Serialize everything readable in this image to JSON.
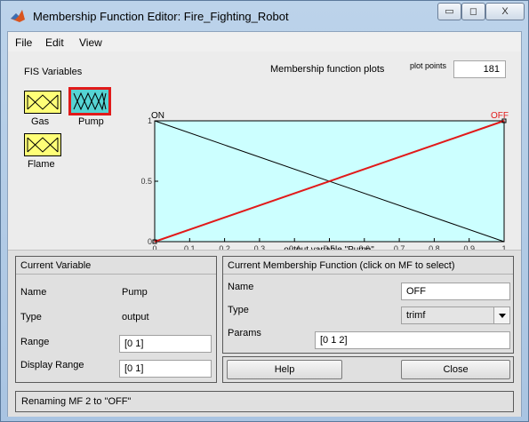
{
  "window": {
    "title": "Membership Function Editor: Fire_Fighting_Robot",
    "controls": {
      "minimize": "▭",
      "maximize": "◻",
      "close": "X"
    }
  },
  "menu": {
    "items": [
      "File",
      "Edit",
      "View"
    ]
  },
  "fis_variables": {
    "title": "FIS Variables",
    "inputs": [
      {
        "label": "Gas"
      },
      {
        "label": "Flame"
      }
    ],
    "outputs": [
      {
        "label": "Pump",
        "selected": true
      }
    ]
  },
  "plot": {
    "title": "Membership function plots",
    "points_label": "plot points",
    "points_value": "181",
    "xlabel": "output variable \"Pump\"",
    "mf_labels": [
      "ON",
      "OFF"
    ],
    "colors": {
      "background": "#ccffff",
      "mf": "#000000",
      "selected_mf": "#e11a1a"
    }
  },
  "chart_data": {
    "type": "line",
    "xlabel": "output variable \"Pump\"",
    "xlim": [
      0,
      1
    ],
    "ylim": [
      0,
      1
    ],
    "x_ticks": [
      "0",
      "0.1",
      "0.2",
      "0.3",
      "0.4",
      "0.5",
      "0.6",
      "0.7",
      "0.8",
      "0.9",
      "1"
    ],
    "y_ticks": [
      "0",
      "0.5",
      "1"
    ],
    "series": [
      {
        "name": "ON",
        "x": [
          0,
          1
        ],
        "y": [
          1,
          0
        ],
        "selected": false
      },
      {
        "name": "OFF",
        "x": [
          0,
          1
        ],
        "y": [
          0,
          1
        ],
        "selected": true
      }
    ]
  },
  "current_variable": {
    "title": "Current Variable",
    "name_label": "Name",
    "name_value": "Pump",
    "type_label": "Type",
    "type_value": "output",
    "range_label": "Range",
    "range_value": "[0 1]",
    "display_range_label": "Display Range",
    "display_range_value": "[0 1]"
  },
  "current_mf": {
    "title": "Current Membership Function (click on MF to select)",
    "name_label": "Name",
    "name_value": "OFF",
    "type_label": "Type",
    "type_value": "trimf",
    "params_label": "Params",
    "params_value": "[0 1 2]"
  },
  "buttons": {
    "help": "Help",
    "close": "Close"
  },
  "status": {
    "message": "Renaming MF 2 to \"OFF\""
  }
}
